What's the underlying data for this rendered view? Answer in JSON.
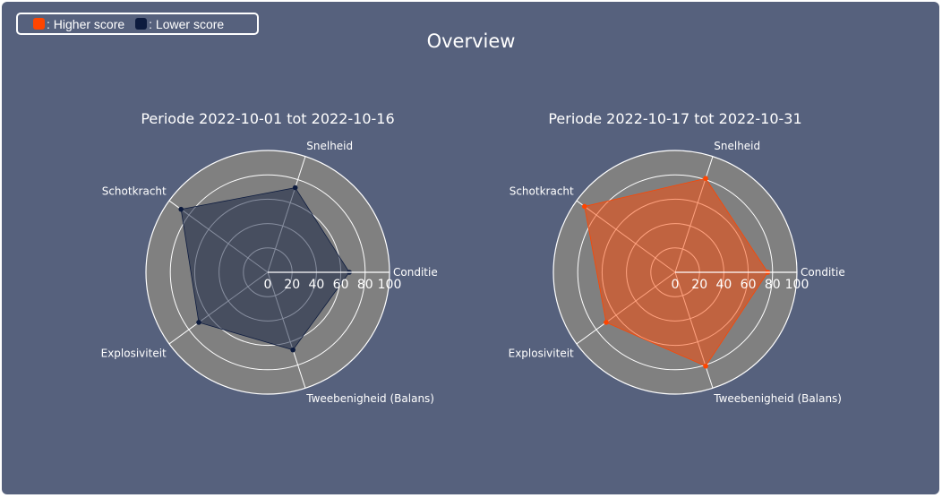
{
  "legend": {
    "items": [
      {
        "label": ": Higher score",
        "color": "#ff4500"
      },
      {
        "label": ": Lower score",
        "color": "#0d1b3e"
      }
    ]
  },
  "title": "Overview",
  "colors": {
    "background": "#56617d",
    "polar_bg": "#808080",
    "grid": "#ffffff",
    "higher": "#ff4500",
    "lower": "#0d1b3e"
  },
  "chart_data": [
    {
      "type": "radar",
      "title": "Periode 2022-10-01 tot 2022-10-16",
      "categories": [
        "Conditie",
        "Snelheid",
        "Schotkracht",
        "Explosiviteit",
        "Tweebenigheid (Balans)"
      ],
      "series": [
        {
          "values": [
            67,
            73,
            88,
            70,
            67
          ],
          "color": "#0d1b3e"
        }
      ],
      "radial_range": [
        0,
        100
      ],
      "radial_ticks": [
        0,
        20,
        40,
        60,
        80,
        100
      ]
    },
    {
      "type": "radar",
      "title": "Periode 2022-10-17 tot 2022-10-31",
      "categories": [
        "Conditie",
        "Snelheid",
        "Schotkracht",
        "Explosiviteit",
        "Tweebenigheid (Balans)"
      ],
      "series": [
        {
          "values": [
            76,
            81,
            92,
            70,
            81
          ],
          "color": "#ff4500"
        }
      ],
      "radial_range": [
        0,
        100
      ],
      "radial_ticks": [
        0,
        20,
        40,
        60,
        80,
        100
      ]
    }
  ]
}
